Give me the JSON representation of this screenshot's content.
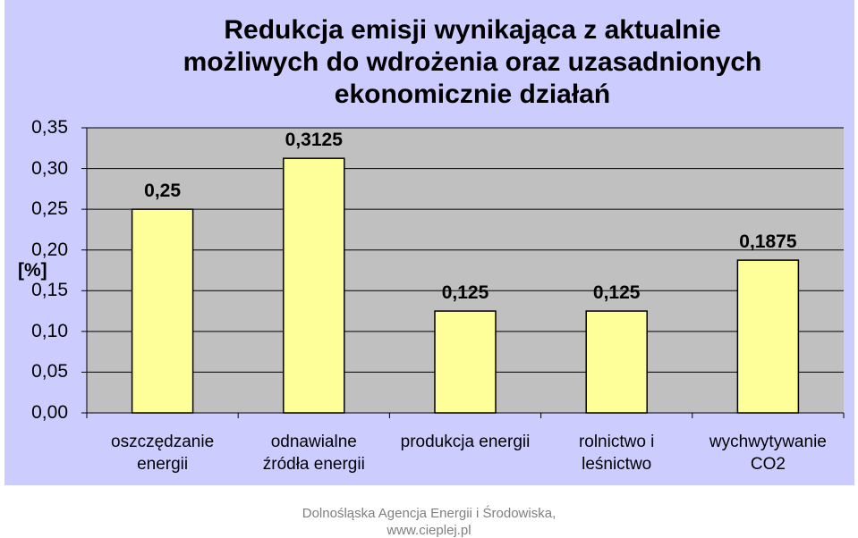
{
  "chart_data": {
    "type": "bar",
    "title": "Redukcja emisji wynikająca z aktualnie\nmożliwych do wdrożenia  oraz uzasadnionych\nekonomicznie działań",
    "y_label": "[%]",
    "categories": [
      "oszczędzanie\nenergii",
      "odnawialne\nźródła energii",
      "produkcja energii",
      "rolnictwo i\nleśnictwo",
      "wychwytywanie\nCO2"
    ],
    "values": [
      0.25,
      0.3125,
      0.125,
      0.125,
      0.1875
    ],
    "value_labels": [
      "0,25",
      "0,3125",
      "0,125",
      "0,125",
      "0,1875"
    ],
    "color": "#ffff99",
    "ylim": [
      0,
      0.35
    ],
    "yticks": [
      {
        "value": 0,
        "label": "0,00"
      },
      {
        "value": 0.05,
        "label": "0,05"
      },
      {
        "value": 0.1,
        "label": "0,10"
      },
      {
        "value": 0.15,
        "label": "0,15"
      },
      {
        "value": 0.2,
        "label": "0,20"
      },
      {
        "value": 0.25,
        "label": "0,25"
      },
      {
        "value": 0.3,
        "label": "0,30"
      },
      {
        "value": 0.35,
        "label": "0,35"
      }
    ],
    "grid": true
  },
  "footer": [
    "Dolnośląska Agencja Energii i Środowiska,",
    "www.cieplej.pl"
  ]
}
